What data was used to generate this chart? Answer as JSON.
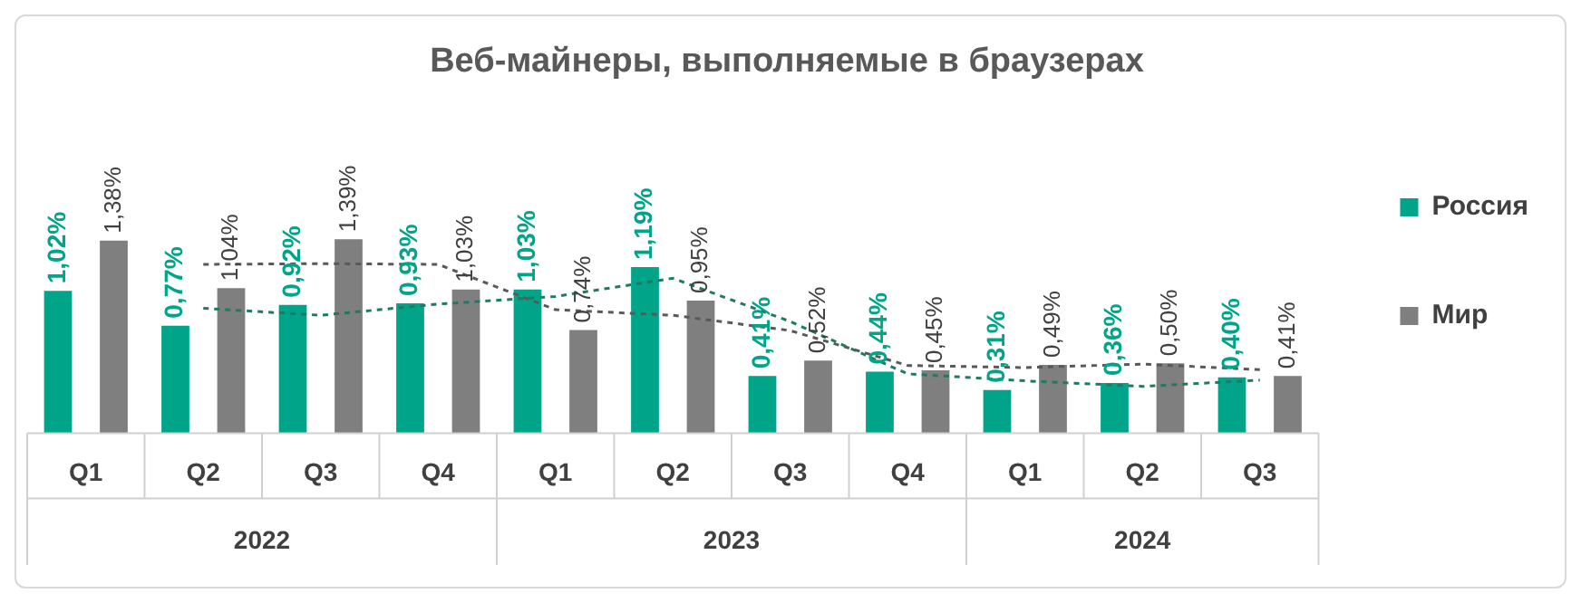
{
  "chart_data": {
    "type": "bar",
    "title": "Веб-майнеры, выполняемые в браузерах",
    "categories": [
      "Q1",
      "Q2",
      "Q3",
      "Q4",
      "Q1",
      "Q2",
      "Q3",
      "Q4",
      "Q1",
      "Q2",
      "Q3"
    ],
    "series": [
      {
        "name": "Россия",
        "color": "#00a589",
        "values": [
          1.02,
          0.77,
          0.92,
          0.93,
          1.03,
          1.19,
          0.41,
          0.44,
          0.31,
          0.36,
          0.4
        ],
        "value_labels": [
          "1,02%",
          "0,77%",
          "0,92%",
          "0,93%",
          "1,03%",
          "1,19%",
          "0,41%",
          "0,44%",
          "0,31%",
          "0,36%",
          "0,40%"
        ]
      },
      {
        "name": "Мир",
        "color": "#7f7f7f",
        "values": [
          1.38,
          1.04,
          1.39,
          1.03,
          0.74,
          0.95,
          0.52,
          0.45,
          0.49,
          0.5,
          0.41
        ],
        "value_labels": [
          "1,38%",
          "1,04%",
          "1,39%",
          "1,03%",
          "0,74%",
          "0,95%",
          "0,52%",
          "0,45%",
          "0,49%",
          "0,50%",
          "0,41%"
        ]
      },
      {
        "type": "line",
        "color": "#1f7a64",
        "line_style": "dashed",
        "values": [
          null,
          0.895,
          0.845,
          0.925,
          0.98,
          1.11,
          0.8,
          0.425,
          0.375,
          0.335,
          0.38
        ]
      },
      {
        "type": "line",
        "color": "#595959",
        "line_style": "dashed",
        "values": [
          null,
          1.21,
          1.215,
          1.21,
          0.885,
          0.845,
          0.735,
          0.485,
          0.47,
          0.495,
          0.455
        ]
      }
    ],
    "annotations": [
      "2022",
      "2023",
      "2024"
    ],
    "legend": "right",
    "grid": false,
    "marker": "none"
  }
}
